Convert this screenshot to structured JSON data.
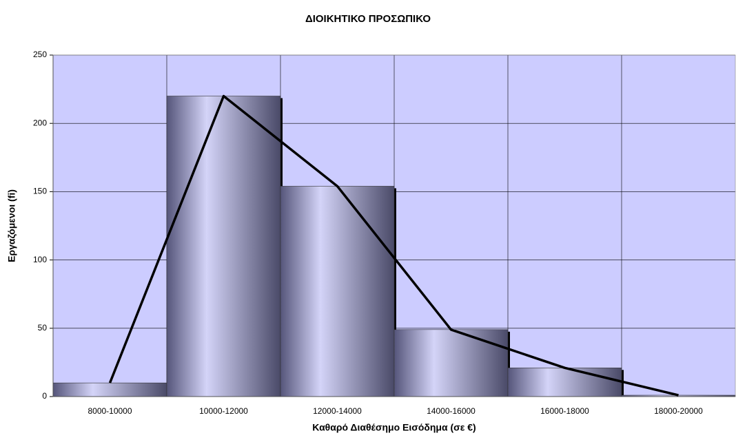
{
  "chart_data": {
    "type": "bar",
    "title": "ΔΙΟΙΚΗΤΙΚΟ ΠΡΟΣΩΠΙΚΟ",
    "x_label": "Καθαρό Διαθέσημο Εισόδημα (σε €)",
    "y_label": "Εργαζόμενοι (fi)",
    "categories": [
      "8000-10000",
      "10000-12000",
      "12000-14000",
      "14000-16000",
      "16000-18000",
      "18000-20000"
    ],
    "values": [
      10,
      220,
      154,
      49,
      21,
      1
    ],
    "ylim": [
      0,
      250
    ],
    "yticks": [
      0,
      50,
      100,
      150,
      200,
      250
    ],
    "grid": true,
    "frequency_polygon": true,
    "background": "#ccccff",
    "color": "#5c5c7c"
  }
}
